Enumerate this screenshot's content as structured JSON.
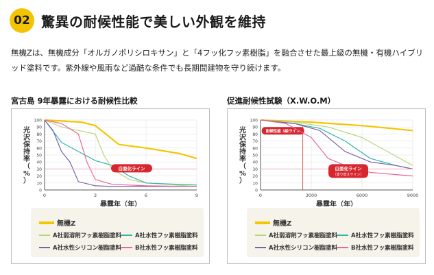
{
  "header": {
    "number": "02",
    "title": "驚異の耐候性能で美しい外観を維持"
  },
  "description": "無機Zは、無機成分「オルガノポリシロキサン」と「4フッ化フッ素樹脂」を融合させた最上級の無機・有機ハイブリッド塗料です。紫外線や風雨など過酷な条件でも長期間建物を守り続けます。",
  "colors": {
    "accent": "#f5c400",
    "whitening_line": "#f2a6b4",
    "badge_red": "#d8262e"
  },
  "chart_data": [
    {
      "type": "line",
      "title": "宮古島 9年暴露における耐候性比較",
      "xlabel": "暴露年（年）",
      "ylabel": "光沢保持率（%）",
      "xlim": [
        0,
        9
      ],
      "ylim": [
        0,
        100
      ],
      "xticks": [
        "0",
        "3",
        "6",
        "9"
      ],
      "yticks": [
        "0",
        "10",
        "20",
        "30",
        "40",
        "50",
        "60",
        "70",
        "80",
        "90",
        "100"
      ],
      "grid": true,
      "reference_line": {
        "y": 30,
        "label": "白亜化ライン"
      },
      "series": [
        {
          "name": "無機Z",
          "color": "#f5c400",
          "x": [
            0,
            2.2,
            3,
            4.4,
            6,
            8,
            9
          ],
          "y": [
            100,
            97,
            92,
            65,
            60,
            52,
            45
          ]
        },
        {
          "name": "A社弱溶剤フッ素樹脂塗料",
          "color": "#b8d67a",
          "x": [
            0,
            1,
            2,
            3,
            3.5,
            4,
            5,
            6,
            9
          ],
          "y": [
            100,
            90,
            85,
            80,
            50,
            30,
            15,
            10,
            5
          ]
        },
        {
          "name": "A社水性フッ素樹脂塗料",
          "color": "#2eb5ac",
          "x": [
            0,
            1,
            2,
            3,
            4,
            5,
            6,
            9
          ],
          "y": [
            100,
            68,
            55,
            42,
            35,
            20,
            10,
            7
          ]
        },
        {
          "name": "A社水性シリコン樹脂塗料",
          "color": "#7b5fa8",
          "x": [
            0,
            0.5,
            1,
            1.5,
            2,
            3,
            4,
            6,
            9
          ],
          "y": [
            100,
            85,
            55,
            40,
            12,
            6,
            5,
            5,
            5
          ]
        },
        {
          "name": "B社水性フッ素樹脂塗料",
          "color": "#e8679c",
          "x": [
            0,
            1,
            2,
            2.5,
            3,
            4,
            6,
            9
          ],
          "y": [
            100,
            95,
            80,
            40,
            15,
            8,
            6,
            5
          ]
        }
      ]
    },
    {
      "type": "line",
      "title": "促進耐候性試験（X.W.O.M）",
      "xlabel": "暴露年（年）",
      "ylabel": "光沢保持率（%）",
      "xlim": [
        0,
        9000
      ],
      "ylim": [
        0,
        100
      ],
      "xticks": [
        "0",
        "3000",
        "6000",
        "9000"
      ],
      "yticks": [
        "0",
        "10",
        "20",
        "30",
        "40",
        "50",
        "60",
        "70",
        "80",
        "90",
        "100"
      ],
      "grid": true,
      "reference_line": {
        "y": 30,
        "label": "白亜化ライン",
        "sublabel": "（塗り替えサイン）"
      },
      "vertical_marker": {
        "x": 2500,
        "label": "耐候性能 3級ライン"
      },
      "series": [
        {
          "name": "無機Z",
          "color": "#f5c400",
          "x": [
            0,
            3000,
            6000,
            9000
          ],
          "y": [
            100,
            97,
            92,
            85
          ]
        },
        {
          "name": "A社弱溶剤フッ素樹脂塗料",
          "color": "#b8d67a",
          "x": [
            0,
            2000,
            4000,
            6000,
            7500,
            9000
          ],
          "y": [
            100,
            97,
            90,
            75,
            55,
            35
          ]
        },
        {
          "name": "A社水性フッ素樹脂塗料",
          "color": "#2eb5ac",
          "x": [
            0,
            2000,
            3500,
            5000,
            6500,
            8000,
            9000
          ],
          "y": [
            100,
            95,
            88,
            70,
            45,
            35,
            30
          ]
        },
        {
          "name": "A社水性シリコン樹脂塗料",
          "color": "#7b5fa8",
          "x": [
            0,
            2000,
            3500,
            5000,
            6500,
            8000,
            9000
          ],
          "y": [
            100,
            95,
            85,
            55,
            40,
            35,
            30
          ]
        },
        {
          "name": "B社水性フッ素樹脂塗料",
          "color": "#e8679c",
          "x": [
            0,
            1500,
            3000,
            4000,
            5000,
            6500,
            9000
          ],
          "y": [
            100,
            95,
            75,
            45,
            35,
            25,
            20
          ]
        }
      ]
    }
  ],
  "legend": {
    "main": "無機Z",
    "items": [
      "A社弱溶剤フッ素樹脂塗料",
      "A社水性フッ素樹脂塗料",
      "A社水性シリコン樹脂塗料",
      "B社水性フッ素樹脂塗料"
    ]
  }
}
